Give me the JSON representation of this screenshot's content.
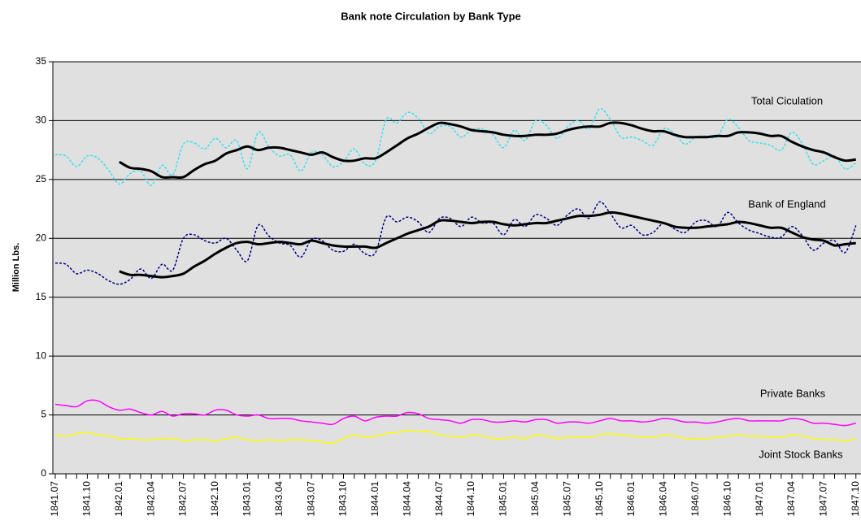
{
  "chart_data": {
    "type": "line",
    "title": "Bank note Circulation by Bank Type",
    "y_label": "Million Lbs.",
    "categories": [
      "1841.07",
      null,
      null,
      "1841.10",
      null,
      null,
      "1842.01",
      null,
      null,
      "1842.04",
      null,
      null,
      "1842.07",
      null,
      null,
      "1842.10",
      null,
      null,
      "1843.01",
      null,
      null,
      "1843.04",
      null,
      null,
      "1843.07",
      null,
      null,
      "1843.10",
      null,
      null,
      "1844.01",
      null,
      null,
      "1844.04",
      null,
      null,
      "1844.07",
      null,
      null,
      "1844.10",
      null,
      null,
      "1845.01",
      null,
      null,
      "1845.04",
      null,
      null,
      "1845.07",
      null,
      null,
      "1845.10",
      null,
      null,
      "1846.01",
      null,
      null,
      "1846.04",
      null,
      null,
      "1846.07",
      null,
      null,
      "1846.10",
      null,
      null,
      "1847.01",
      null,
      null,
      "1847.04",
      null,
      null,
      "1847.07",
      null,
      null,
      "1847.10"
    ],
    "ylim": [
      0,
      35
    ],
    "yticks": [
      0,
      5,
      10,
      15,
      20,
      25,
      30,
      35
    ],
    "grid": true,
    "series": [
      {
        "name": "Total Ciculation",
        "color": "#33e0ee",
        "style": "dotted",
        "line_width": 1.5,
        "values": [
          27.1,
          27.0,
          26.1,
          27.0,
          26.8,
          25.8,
          24.6,
          25.5,
          25.7,
          24.5,
          26.2,
          25.4,
          28.0,
          28.1,
          27.6,
          28.5,
          27.7,
          28.3,
          25.9,
          29.0,
          27.8,
          27.0,
          27.1,
          25.7,
          27.3,
          27.1,
          26.1,
          26.5,
          27.6,
          26.3,
          26.6,
          30.1,
          29.8,
          30.7,
          30.2,
          28.9,
          29.5,
          29.5,
          28.6,
          29.2,
          29.3,
          28.8,
          27.7,
          29.2,
          28.3,
          30.0,
          29.6,
          28.5,
          29.5,
          30.0,
          29.3,
          31.0,
          30.1,
          28.6,
          28.6,
          28.3,
          27.9,
          29.3,
          28.9,
          28.0,
          28.6,
          28.7,
          28.6,
          30.1,
          29.4,
          28.3,
          28.1,
          27.9,
          27.5,
          29.0,
          28.0,
          26.3,
          26.6,
          27.0,
          25.9,
          26.4
        ]
      },
      {
        "color": "#000000",
        "line_width": 3,
        "values": [
          null,
          null,
          null,
          null,
          null,
          null,
          26.5,
          26.0,
          25.9,
          25.7,
          25.2,
          25.2,
          25.2,
          25.8,
          26.3,
          26.6,
          27.2,
          27.5,
          27.8,
          27.5,
          27.7,
          27.7,
          27.5,
          27.3,
          27.1,
          27.3,
          26.9,
          26.6,
          26.6,
          26.8,
          26.8,
          27.3,
          27.9,
          28.5,
          28.9,
          29.4,
          29.8,
          29.7,
          29.5,
          29.2,
          29.1,
          29.0,
          28.8,
          28.7,
          28.7,
          28.8,
          28.8,
          28.9,
          29.2,
          29.4,
          29.5,
          29.5,
          29.8,
          29.8,
          29.6,
          29.3,
          29.1,
          29.1,
          28.8,
          28.6,
          28.6,
          28.6,
          28.7,
          28.7,
          29.0,
          29.0,
          28.9,
          28.7,
          28.7,
          28.2,
          27.8,
          27.5,
          27.3,
          26.9,
          26.6,
          26.7
        ]
      },
      {
        "name": "Bank of England",
        "color": "#000080",
        "style": "dotted",
        "line_width": 1.5,
        "values": [
          17.9,
          17.8,
          17.0,
          17.3,
          17.0,
          16.4,
          16.1,
          16.5,
          17.4,
          16.6,
          17.8,
          17.3,
          20.0,
          20.3,
          19.8,
          19.6,
          20.0,
          19.0,
          18.1,
          21.1,
          20.2,
          19.6,
          19.4,
          18.4,
          19.9,
          19.8,
          19.0,
          18.9,
          19.5,
          18.7,
          18.8,
          21.8,
          21.4,
          21.8,
          21.4,
          20.5,
          21.7,
          21.7,
          21.0,
          21.8,
          21.3,
          21.3,
          20.3,
          21.6,
          21.0,
          22.0,
          21.7,
          21.1,
          22.0,
          22.5,
          21.7,
          23.1,
          22.1,
          20.9,
          21.1,
          20.3,
          20.5,
          21.3,
          20.8,
          20.5,
          21.4,
          21.5,
          21.0,
          22.2,
          21.3,
          20.7,
          20.4,
          20.1,
          20.1,
          21.0,
          20.2,
          19.0,
          19.6,
          19.8,
          18.8,
          21.1
        ]
      },
      {
        "color": "#000000",
        "line_width": 3,
        "values": [
          null,
          null,
          null,
          null,
          null,
          null,
          17.2,
          16.9,
          16.9,
          16.8,
          16.7,
          16.8,
          17.0,
          17.6,
          18.1,
          18.7,
          19.2,
          19.6,
          19.7,
          19.5,
          19.6,
          19.7,
          19.6,
          19.5,
          19.8,
          19.6,
          19.4,
          19.3,
          19.3,
          19.3,
          19.2,
          19.6,
          20.0,
          20.4,
          20.7,
          21.0,
          21.5,
          21.5,
          21.4,
          21.3,
          21.4,
          21.4,
          21.2,
          21.1,
          21.2,
          21.3,
          21.3,
          21.5,
          21.7,
          21.9,
          21.9,
          22.0,
          22.2,
          22.1,
          21.9,
          21.7,
          21.5,
          21.3,
          21.0,
          20.9,
          20.9,
          21.0,
          21.1,
          21.2,
          21.4,
          21.3,
          21.1,
          20.9,
          20.9,
          20.5,
          20.1,
          19.9,
          19.8,
          19.4,
          19.5,
          19.6
        ]
      },
      {
        "name": "Private Banks",
        "color": "#ff00ff",
        "line_width": 1.5,
        "values": [
          5.9,
          5.8,
          5.7,
          6.2,
          6.2,
          5.7,
          5.4,
          5.5,
          5.2,
          5.0,
          5.3,
          4.9,
          5.1,
          5.1,
          5.0,
          5.4,
          5.4,
          5.0,
          4.9,
          5.0,
          4.7,
          4.7,
          4.7,
          4.5,
          4.4,
          4.3,
          4.2,
          4.7,
          4.9,
          4.5,
          4.8,
          4.9,
          4.9,
          5.2,
          5.1,
          4.7,
          4.6,
          4.5,
          4.3,
          4.6,
          4.6,
          4.4,
          4.4,
          4.5,
          4.4,
          4.6,
          4.6,
          4.3,
          4.4,
          4.4,
          4.3,
          4.5,
          4.7,
          4.5,
          4.5,
          4.4,
          4.5,
          4.7,
          4.6,
          4.4,
          4.4,
          4.3,
          4.4,
          4.6,
          4.7,
          4.5,
          4.5,
          4.5,
          4.5,
          4.7,
          4.6,
          4.3,
          4.3,
          4.2,
          4.1,
          4.3
        ]
      },
      {
        "name": "Joint Stock Banks",
        "color": "#ffff00",
        "line_width": 1.5,
        "values": [
          3.3,
          3.2,
          3.4,
          3.5,
          3.3,
          3.2,
          3.0,
          3.0,
          2.9,
          2.9,
          3.0,
          3.0,
          2.8,
          2.9,
          2.9,
          2.8,
          3.0,
          3.1,
          2.9,
          2.8,
          2.9,
          2.8,
          2.9,
          2.9,
          2.8,
          2.7,
          2.6,
          3.0,
          3.3,
          3.1,
          3.2,
          3.4,
          3.5,
          3.7,
          3.6,
          3.6,
          3.3,
          3.2,
          3.1,
          3.3,
          3.2,
          3.0,
          3.0,
          3.1,
          3.0,
          3.3,
          3.2,
          3.0,
          3.1,
          3.1,
          3.1,
          3.3,
          3.4,
          3.3,
          3.2,
          3.1,
          3.1,
          3.3,
          3.2,
          3.0,
          3.0,
          3.0,
          3.1,
          3.2,
          3.3,
          3.2,
          3.2,
          3.1,
          3.1,
          3.3,
          3.2,
          3.0,
          2.9,
          2.9,
          2.8,
          3.0
        ]
      }
    ]
  }
}
